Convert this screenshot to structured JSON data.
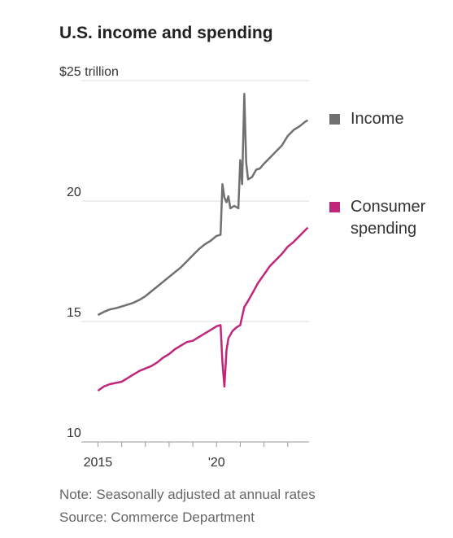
{
  "chart_data": {
    "type": "line",
    "title": "U.S. income and spending",
    "notes": [
      "Note: Seasonally adjusted at annual rates",
      "Source: Commerce Department"
    ],
    "xlim": [
      2014.3,
      2023.9
    ],
    "ylim": [
      10,
      25
    ],
    "yticks": [
      10,
      15,
      20,
      {
        "value": 25,
        "label": "$25 trillion"
      }
    ],
    "xticks": [
      2015,
      {
        "value": 2020,
        "label": "'20"
      }
    ],
    "xminor_ticks": [
      2016,
      2017,
      2018,
      2019,
      2021,
      2022,
      2023
    ],
    "grid": true,
    "series": [
      {
        "name": "Income",
        "color": "#707070",
        "x": [
          2015.0,
          2015.25,
          2015.5,
          2015.75,
          2016.0,
          2016.25,
          2016.5,
          2016.75,
          2017.0,
          2017.25,
          2017.5,
          2017.75,
          2018.0,
          2018.25,
          2018.5,
          2018.75,
          2019.0,
          2019.25,
          2019.5,
          2019.75,
          2020.0,
          2020.17,
          2020.25,
          2020.33,
          2020.42,
          2020.5,
          2020.58,
          2020.75,
          2020.92,
          2021.0,
          2021.08,
          2021.17,
          2021.25,
          2021.33,
          2021.5,
          2021.67,
          2021.83,
          2022.0,
          2022.25,
          2022.5,
          2022.75,
          2023.0,
          2023.25,
          2023.5,
          2023.75,
          2023.85
        ],
        "values": [
          15.27,
          15.4,
          15.5,
          15.55,
          15.62,
          15.7,
          15.78,
          15.9,
          16.05,
          16.25,
          16.45,
          16.65,
          16.85,
          17.05,
          17.25,
          17.5,
          17.75,
          18.0,
          18.2,
          18.35,
          18.55,
          18.6,
          20.7,
          20.15,
          19.95,
          20.2,
          19.7,
          19.8,
          19.7,
          21.7,
          20.7,
          24.45,
          21.6,
          20.9,
          21.0,
          21.3,
          21.35,
          21.55,
          21.8,
          22.05,
          22.3,
          22.7,
          22.95,
          23.1,
          23.3,
          23.35
        ]
      },
      {
        "name": "Consumer spending",
        "color": "#c0267a",
        "x": [
          2015.0,
          2015.25,
          2015.5,
          2015.75,
          2016.0,
          2016.25,
          2016.5,
          2016.75,
          2017.0,
          2017.25,
          2017.5,
          2017.75,
          2018.0,
          2018.25,
          2018.5,
          2018.75,
          2019.0,
          2019.25,
          2019.5,
          2019.75,
          2020.0,
          2020.17,
          2020.25,
          2020.33,
          2020.42,
          2020.5,
          2020.67,
          2020.83,
          2021.0,
          2021.17,
          2021.33,
          2021.5,
          2021.75,
          2022.0,
          2022.25,
          2022.5,
          2022.75,
          2023.0,
          2023.25,
          2023.5,
          2023.75,
          2023.85
        ],
        "values": [
          12.13,
          12.3,
          12.4,
          12.45,
          12.5,
          12.65,
          12.8,
          12.95,
          13.05,
          13.15,
          13.3,
          13.5,
          13.65,
          13.85,
          14.0,
          14.15,
          14.2,
          14.35,
          14.5,
          14.65,
          14.8,
          14.85,
          13.3,
          12.3,
          13.8,
          14.3,
          14.6,
          14.75,
          14.85,
          15.6,
          15.85,
          16.15,
          16.6,
          16.95,
          17.3,
          17.55,
          17.8,
          18.1,
          18.3,
          18.55,
          18.8,
          18.9
        ]
      }
    ]
  }
}
